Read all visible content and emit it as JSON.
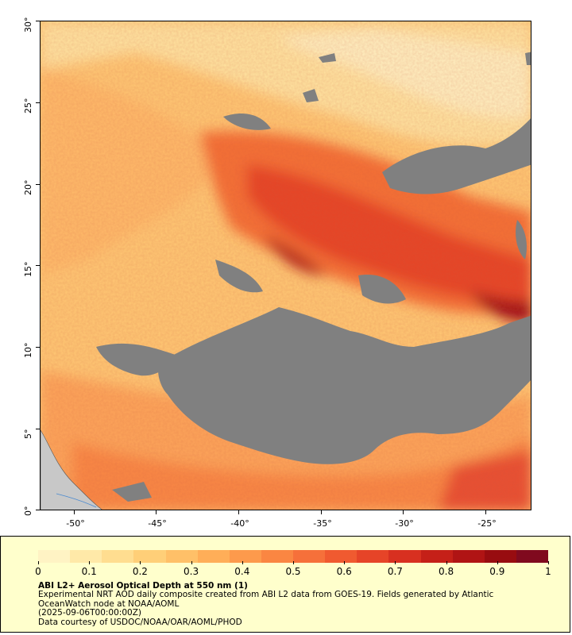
{
  "map": {
    "lat_ticks": [
      "30°",
      "25°",
      "20°",
      "15°",
      "10°",
      "5°",
      "0°"
    ],
    "lon_ticks": [
      "-50°",
      "-45°",
      "-40°",
      "-35°",
      "-30°",
      "-25°"
    ],
    "nodata_color": "#808080",
    "land_color": "#c8c8c8"
  },
  "legend": {
    "colorbar_min": 0,
    "colorbar_max": 1,
    "tick_labels": [
      "0",
      "0.1",
      "0.2",
      "0.3",
      "0.4",
      "0.5",
      "0.6",
      "0.7",
      "0.8",
      "0.9",
      "1"
    ],
    "colors": [
      "#fff3c4",
      "#ffe9a8",
      "#ffdd90",
      "#ffcf78",
      "#ffc068",
      "#ffae58",
      "#fd9a4c",
      "#fa8642",
      "#f6703a",
      "#f05a30",
      "#e64428",
      "#d83020",
      "#c52018",
      "#b01414",
      "#980c10",
      "#800a1e"
    ],
    "title": "ABI L2+ Aerosol Optical Depth at 550 nm (1)",
    "description": "Experimental NRT AOD daily composite created from ABI L2 data from GOES-19. Fields generated by Atlantic OceanWatch node at NOAA/AOML",
    "timestamp": "(2025-09-06T00:00:00Z)",
    "credit": "Data courtesy of USDOC/NOAA/OAR/AOML/PHOD"
  }
}
